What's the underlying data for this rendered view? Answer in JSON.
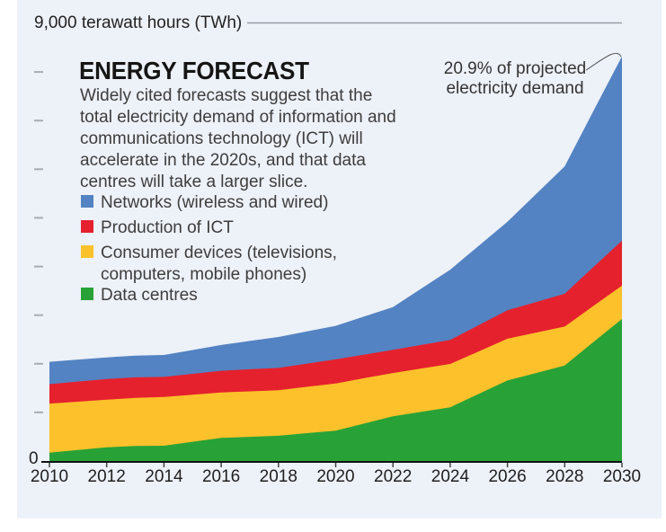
{
  "panel": {
    "background": "#edf1f8",
    "top_rule_color": "#9aa0a6",
    "axis_color": "#111111",
    "tick_color": "#a9adb3"
  },
  "y_axis": {
    "max_label": "9,000 terawatt hours (TWh)",
    "zero_label": "0"
  },
  "title": "ENERGY FORECAST",
  "description_lines": [
    "Widely cited forecasts suggest that the",
    "total electricity demand of information and",
    "communications technology (ICT) will",
    "accelerate in the 2020s, and that data",
    "centres will take a larger slice."
  ],
  "annotation": {
    "line1": "20.9% of projected",
    "line2": "electricity demand"
  },
  "chart_data": {
    "type": "area",
    "stacked": true,
    "title": "ENERGY FORECAST",
    "subtitle": "Widely cited forecasts suggest that the total electricity demand of information and communications technology (ICT) will accelerate in the 2020s, and that data centres will take a larger slice.",
    "ylabel": "terawatt hours (TWh)",
    "ylim": [
      0,
      9000
    ],
    "y_tick_interval": 1000,
    "x": [
      2010,
      2011,
      2012,
      2013,
      2014,
      2015,
      2016,
      2017,
      2018,
      2019,
      2020,
      2021,
      2022,
      2023,
      2024,
      2025,
      2026,
      2027,
      2028,
      2029,
      2030
    ],
    "x_tick_labels": [
      "2010",
      "2012",
      "2014",
      "2016",
      "2018",
      "2020",
      "2022",
      "2024",
      "2026",
      "2028",
      "2030"
    ],
    "series": [
      {
        "id": "data-centres",
        "name": "Data centres",
        "color": "#28a237",
        "values": [
          170,
          225,
          280,
          310,
          315,
          395,
          475,
          498,
          520,
          573,
          625,
          773,
          920,
          1013,
          1105,
          1380,
          1655,
          1810,
          1965,
          2445,
          2920
        ]
      },
      {
        "id": "consumer-devices",
        "name": "Consumer devices (televisions, computers, mobile phones)",
        "color": "#fcc12b",
        "values": [
          1010,
          995,
          980,
          990,
          1000,
          968,
          935,
          935,
          935,
          953,
          970,
          930,
          890,
          890,
          890,
          875,
          860,
          830,
          800,
          743,
          685
        ]
      },
      {
        "id": "production-of-ict",
        "name": "Production of ICT",
        "color": "#e5212e",
        "values": [
          400,
          413,
          425,
          420,
          415,
          430,
          445,
          453,
          460,
          478,
          495,
          485,
          475,
          485,
          495,
          540,
          585,
          630,
          675,
          800,
          925
        ]
      },
      {
        "id": "networks",
        "name": "Networks (wireless and wired)",
        "color": "#5383c2",
        "values": [
          460,
          453,
          445,
          448,
          450,
          490,
          530,
          583,
          635,
          663,
          690,
          785,
          880,
          1163,
          1445,
          1633,
          1820,
          2220,
          2620,
          3205,
          3790
        ]
      }
    ],
    "legend": [
      {
        "label": "Networks (wireless and wired)",
        "color": "#5383c2"
      },
      {
        "label": "Production of ICT",
        "color": "#e5212e"
      },
      {
        "label": "Consumer devices (televisions, computers, mobile phones)",
        "color": "#fcc12b"
      },
      {
        "label": "Data centres",
        "color": "#28a237"
      }
    ],
    "annotation": "20.9% of projected electricity demand"
  }
}
